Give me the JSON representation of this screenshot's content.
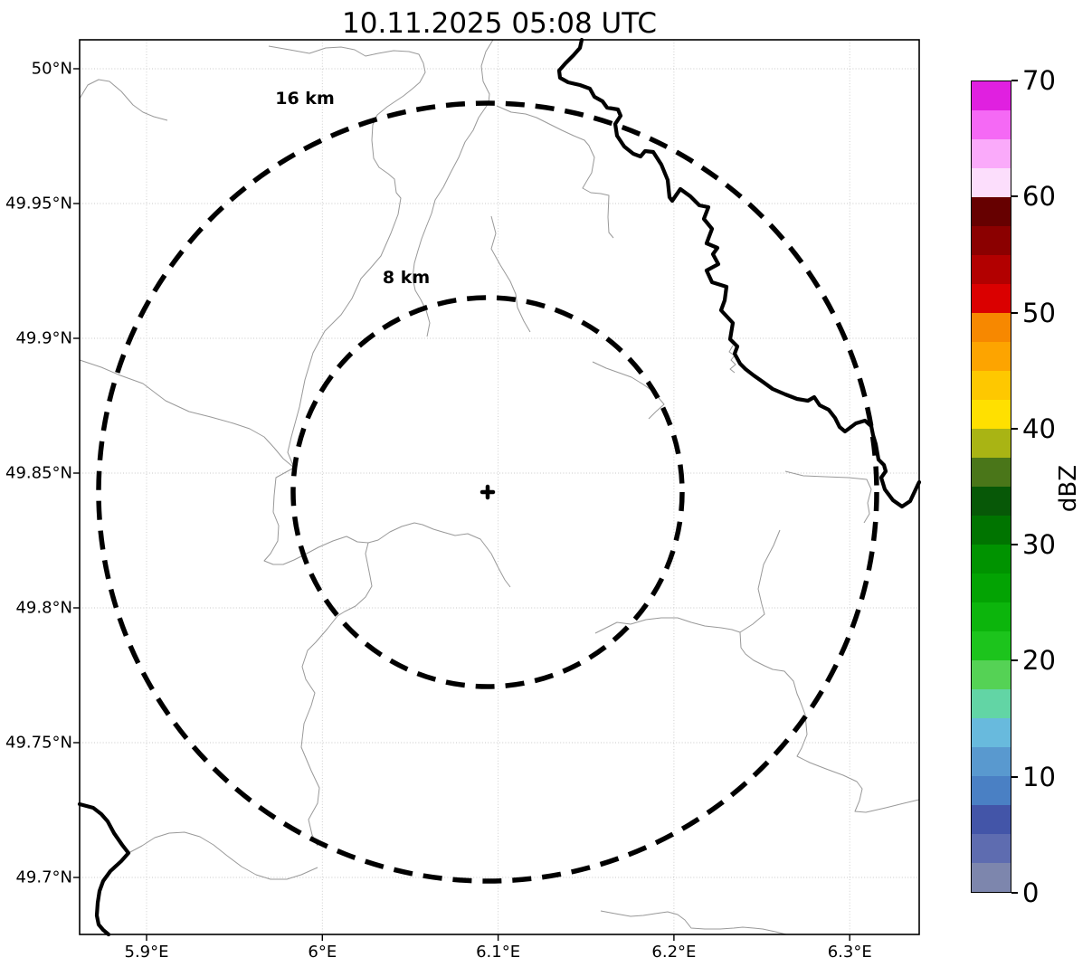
{
  "title": "10.11.2025 05:08 UTC",
  "map": {
    "x_axis": {
      "ticks": [
        {
          "label": "5.9°E",
          "lon": 5.9
        },
        {
          "label": "6°E",
          "lon": 6.0
        },
        {
          "label": "6.1°E",
          "lon": 6.1
        },
        {
          "label": "6.2°E",
          "lon": 6.2
        },
        {
          "label": "6.3°E",
          "lon": 6.3
        }
      ]
    },
    "y_axis": {
      "ticks": [
        {
          "label": "50°N",
          "lat": 50.0
        },
        {
          "label": "49.95°N",
          "lat": 49.95
        },
        {
          "label": "49.9°N",
          "lat": 49.9
        },
        {
          "label": "49.85°N",
          "lat": 49.85
        },
        {
          "label": "49.8°N",
          "lat": 49.8
        },
        {
          "label": "49.75°N",
          "lat": 49.75
        },
        {
          "label": "49.7°N",
          "lat": 49.7
        }
      ]
    },
    "range_rings": [
      {
        "label": "16 km",
        "radius_km": 16
      },
      {
        "label": "8 km",
        "radius_km": 8
      }
    ],
    "center_marker": "+"
  },
  "colorbar": {
    "label": "dBZ",
    "min": 0,
    "max": 70,
    "segment_step": 2.5,
    "tick_values": [
      0,
      10,
      20,
      30,
      40,
      50,
      60,
      70
    ],
    "tick_labels": [
      "0",
      "10",
      "20",
      "30",
      "40",
      "50",
      "60",
      "70"
    ],
    "segment_colors_bottom_to_top": [
      "#7d86ad",
      "#5e6cb0",
      "#4355a8",
      "#4a80c4",
      "#5999cf",
      "#68badd",
      "#62d5a5",
      "#55d255",
      "#1cc41c",
      "#0cb50c",
      "#03a303",
      "#009300",
      "#007400",
      "#075807",
      "#4a7619",
      "#a9b414",
      "#ffe000",
      "#fec800",
      "#fda400",
      "#f78800",
      "#da0000",
      "#b20000",
      "#8b0000",
      "#660000",
      "#fcdefc",
      "#faaafa",
      "#f569f5",
      "#e020e0"
    ]
  }
}
